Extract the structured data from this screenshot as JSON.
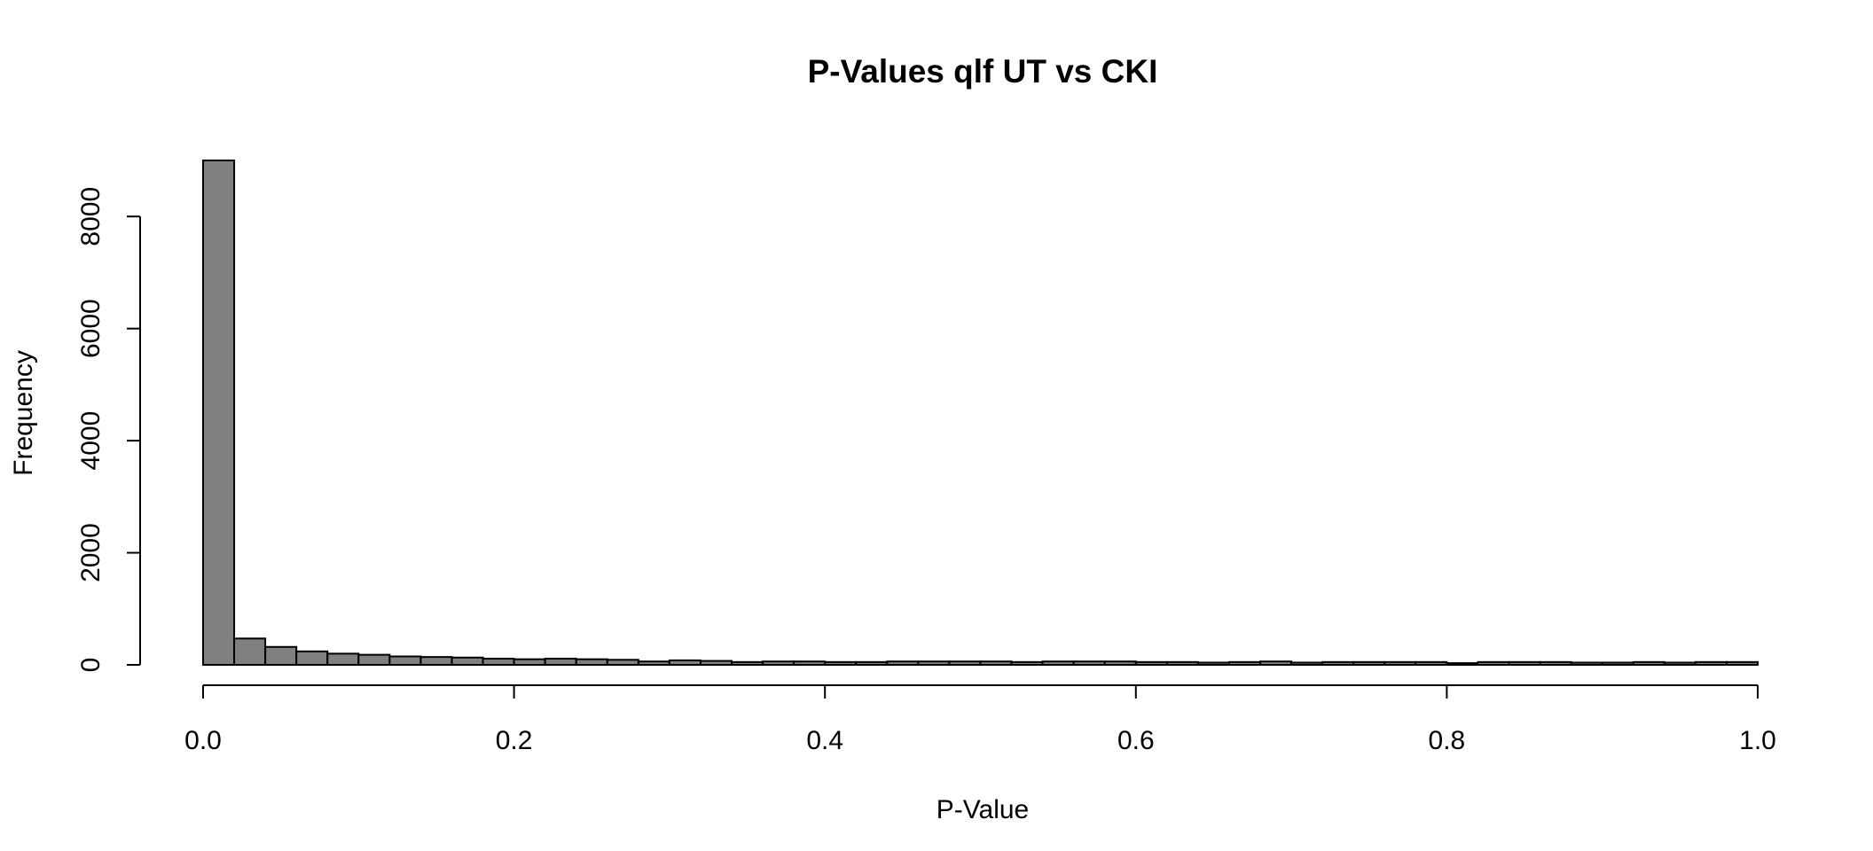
{
  "chart_data": {
    "type": "bar",
    "title": "P-Values qlf UT vs CKI",
    "xlabel": "P-Value",
    "ylabel": "Frequency",
    "xlim": [
      0,
      1
    ],
    "ylim": [
      0,
      9000
    ],
    "x_ticks": [
      0.0,
      0.2,
      0.4,
      0.6,
      0.8,
      1.0
    ],
    "x_tick_labels": [
      "0.0",
      "0.2",
      "0.4",
      "0.6",
      "0.8",
      "1.0"
    ],
    "y_ticks": [
      0,
      2000,
      4000,
      6000,
      8000
    ],
    "y_tick_labels": [
      "0",
      "2000",
      "4000",
      "6000",
      "8000"
    ],
    "grid": false,
    "legend": "none",
    "bin_width": 0.02,
    "bin_starts": [
      0.0,
      0.02,
      0.04,
      0.06,
      0.08,
      0.1,
      0.12,
      0.14,
      0.16,
      0.18,
      0.2,
      0.22,
      0.24,
      0.26,
      0.28,
      0.3,
      0.32,
      0.34,
      0.36,
      0.38,
      0.4,
      0.42,
      0.44,
      0.46,
      0.48,
      0.5,
      0.52,
      0.54,
      0.56,
      0.58,
      0.6,
      0.62,
      0.64,
      0.66,
      0.68,
      0.7,
      0.72,
      0.74,
      0.76,
      0.78,
      0.8,
      0.82,
      0.84,
      0.86,
      0.88,
      0.9,
      0.92,
      0.94,
      0.96,
      0.98
    ],
    "values": [
      9000,
      470,
      320,
      240,
      200,
      180,
      150,
      140,
      130,
      110,
      100,
      110,
      100,
      90,
      60,
      80,
      70,
      50,
      60,
      60,
      50,
      50,
      60,
      60,
      60,
      60,
      50,
      60,
      60,
      60,
      50,
      50,
      40,
      50,
      60,
      40,
      50,
      50,
      50,
      50,
      30,
      50,
      50,
      50,
      40,
      40,
      50,
      40,
      50,
      50
    ],
    "colors": {
      "bar_fill": "#808080",
      "bar_stroke": "#000000",
      "text": "#000000"
    }
  }
}
